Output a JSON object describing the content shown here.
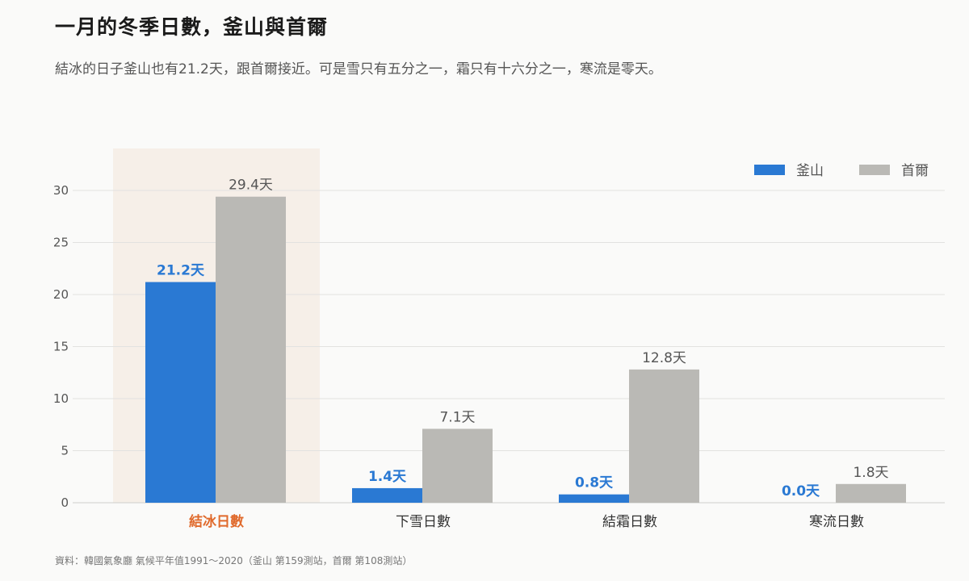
{
  "header": {
    "title": "一月的冬季日數，釜山與首爾",
    "subtitle": "結冰的日子釜山也有21.2天，跟首爾接近。可是雪只有五分之一，霜只有十六分之一，寒流是零天。"
  },
  "footer": {
    "source": "資料：韓國氣象廳 氣候平年值1991～2020（釜山 第159測站，首爾 第108測站）"
  },
  "colors": {
    "busan": "#2a79d3",
    "seoul": "#bab9b5",
    "highlight_band": "#f6efe8",
    "highlight_text": "#e06a2c",
    "grid": "#e2e2e0"
  },
  "chart_data": {
    "type": "bar",
    "categories": [
      "結冰日數",
      "下雪日數",
      "結霜日數",
      "寒流日數"
    ],
    "highlighted_category": "結冰日數",
    "series": [
      {
        "name": "釜山",
        "values": [
          21.2,
          1.4,
          0.8,
          0.0
        ]
      },
      {
        "name": "首爾",
        "values": [
          29.4,
          7.1,
          12.8,
          1.8
        ]
      }
    ],
    "value_suffix": "天",
    "ylim": [
      0,
      30
    ],
    "yticks": [
      0,
      5,
      10,
      15,
      20,
      25,
      30
    ],
    "grid": true,
    "legend_position": "top-right"
  }
}
